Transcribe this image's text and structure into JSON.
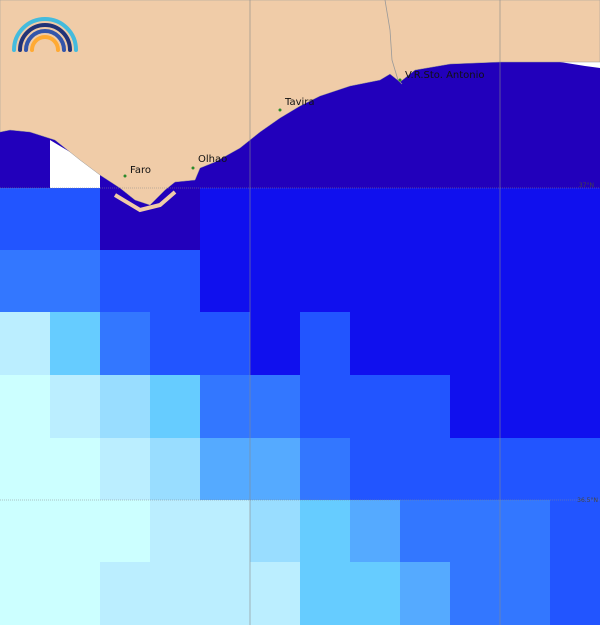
{
  "places": [
    {
      "label": "Faro"
    },
    {
      "label": "Olhao"
    },
    {
      "label": "Tavira"
    },
    {
      "label": "V.R.Sto. Antonio"
    }
  ],
  "graticule": {
    "labels": [
      "37°N",
      "36.5°N"
    ]
  }
}
